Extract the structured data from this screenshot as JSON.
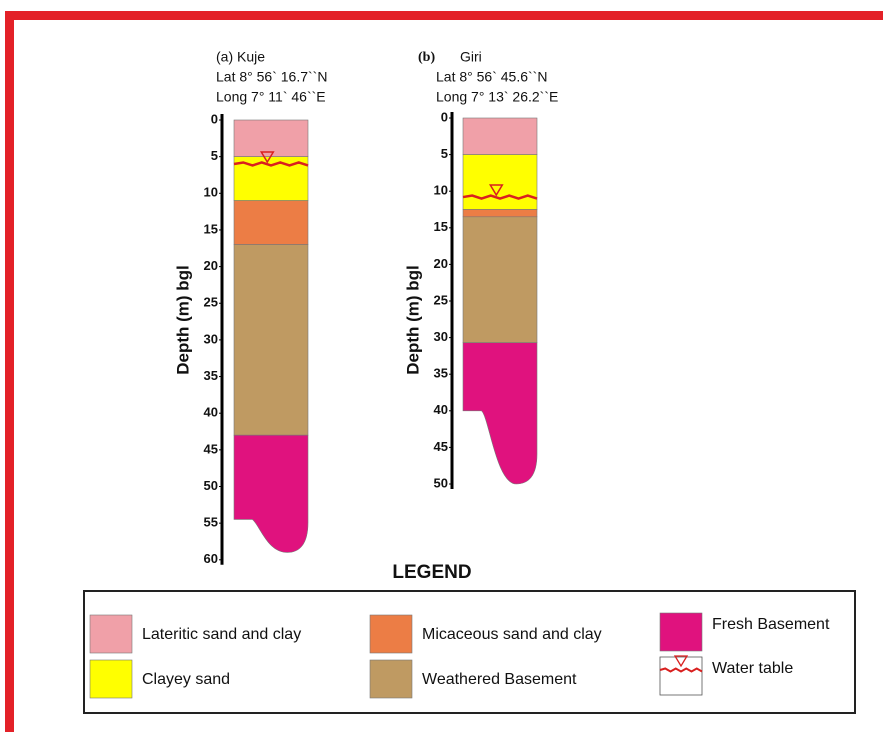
{
  "legend_title": "LEGEND",
  "legend": [
    {
      "label": "Lateritic sand  and clay",
      "color": "#f0a0a8"
    },
    {
      "label": "Clayey sand",
      "color": "#ffff00"
    },
    {
      "label": "Micaceous sand and clay",
      "color": "#ec7d45"
    },
    {
      "label": "Weathered Basement",
      "color": "#bf9a62"
    },
    {
      "label": "Fresh Basement",
      "color": "#e0127e"
    },
    {
      "label": "Water table",
      "color": "#d9201f"
    }
  ],
  "columns": [
    {
      "tag": "(a) Kuje",
      "lat": "Lat 8° 56` 16.7``N",
      "long": "Long 7° 11` 46``E",
      "axis_label": "Depth (m) bgl",
      "ylim": [
        0,
        60
      ],
      "yticks": [
        0,
        5,
        10,
        15,
        20,
        25,
        30,
        35,
        40,
        45,
        50,
        55,
        60
      ],
      "layers": [
        {
          "color": "#f0a0a8",
          "top": 0,
          "bottom": 5
        },
        {
          "color": "#ffff00",
          "top": 5,
          "bottom": 11
        },
        {
          "color": "#ec7d45",
          "top": 11,
          "bottom": 17
        },
        {
          "color": "#bf9a62",
          "top": 17,
          "bottom": 43
        },
        {
          "color": "#e0127e",
          "top": 43,
          "bottom": 59,
          "left_bottom": 54.5
        }
      ],
      "water_table": 6
    },
    {
      "tag": "(b)",
      "name": "Giri",
      "lat": "Lat 8° 56` 45.6``N",
      "long": "Long 7° 13` 26.2``E",
      "axis_label": "Depth (m) bgl",
      "ylim": [
        0,
        50
      ],
      "yticks": [
        0,
        5,
        10,
        15,
        20,
        25,
        30,
        35,
        40,
        45,
        50
      ],
      "layers": [
        {
          "color": "#f0a0a8",
          "top": 0,
          "bottom": 5
        },
        {
          "color": "#ffff00",
          "top": 5,
          "bottom": 12.5
        },
        {
          "color": "#ec7d45",
          "top": 12.5,
          "bottom": 13.5
        },
        {
          "color": "#bf9a62",
          "top": 13.5,
          "bottom": 30.7
        },
        {
          "color": "#e0127e",
          "top": 30.7,
          "bottom": 50,
          "left_bottom": 40
        }
      ],
      "water_table": 10.8
    }
  ]
}
